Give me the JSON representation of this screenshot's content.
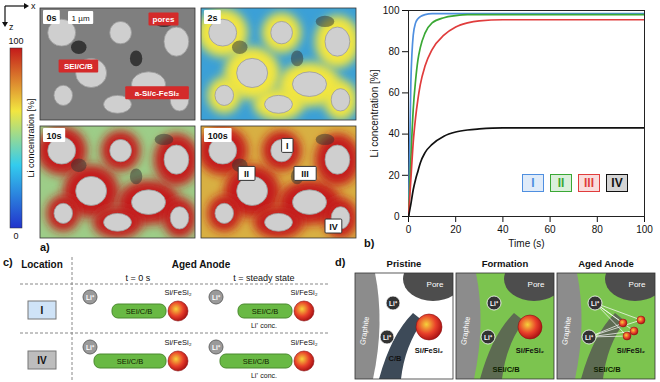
{
  "chart_data": {
    "type": "line",
    "panel_label": "b)",
    "xlabel": "Time (s)",
    "ylabel": "Li concentration [%]",
    "x": [
      0,
      1,
      2,
      3,
      4,
      5,
      7,
      10,
      15,
      20,
      25,
      30,
      40,
      50,
      60,
      70,
      80,
      90,
      100
    ],
    "series": [
      {
        "name": "I",
        "color": "#4f8fe0",
        "values": [
          0,
          65,
          88,
          94,
          96,
          97,
          98,
          98.5,
          98.5,
          98.5,
          98.5,
          98.5,
          98.5,
          98.5,
          98.5,
          98.5,
          98.5,
          98.5,
          98.5
        ]
      },
      {
        "name": "II",
        "color": "#3aa835",
        "values": [
          0,
          28,
          52,
          66,
          76,
          82,
          89,
          94,
          96.5,
          97.5,
          98,
          98,
          98,
          98,
          98,
          98,
          98,
          98,
          98
        ]
      },
      {
        "name": "III",
        "color": "#e03c3c",
        "values": [
          0,
          18,
          36,
          48,
          57,
          64,
          73,
          81,
          88,
          92,
          94,
          95,
          95.5,
          95.5,
          95.5,
          95.5,
          95.5,
          95.5,
          95.5
        ]
      },
      {
        "name": "IV",
        "color": "#111111",
        "values": [
          0,
          6,
          13,
          18,
          22,
          26,
          31,
          35,
          39,
          41,
          42,
          42.5,
          43,
          43,
          43,
          43,
          43,
          43,
          43
        ]
      }
    ],
    "xlim": [
      0,
      100
    ],
    "ylim": [
      0,
      100
    ],
    "xticks": [
      0,
      20,
      40,
      60,
      80,
      100
    ],
    "yticks": [
      0,
      20,
      40,
      60,
      80,
      100
    ],
    "grid": false,
    "legend": "bottom-right"
  },
  "panel_a": {
    "panel_label": "a)",
    "axes": {
      "x": "x",
      "z": "z"
    },
    "scale_bar": "1 µm",
    "frames": [
      "0s",
      "2s",
      "10s",
      "100s"
    ],
    "annotations": [
      "pores",
      "SEI/C/B",
      "a-Si/c-FeSi₂"
    ],
    "regions": [
      "I",
      "II",
      "III",
      "IV"
    ],
    "colorbar": {
      "label": "Li concentration [%]",
      "range": [
        0,
        100
      ],
      "ticks": [
        0,
        100
      ]
    }
  },
  "panel_c": {
    "panel_label": "c)",
    "headers": {
      "location": "Location",
      "condition": "Aged Anode"
    },
    "columns": [
      "t = 0 s",
      "t = steady state"
    ],
    "rows": [
      {
        "location": "I",
        "cells": [
          {
            "binder": "SEI/C/B",
            "particle": "Si/FeSi₂",
            "ion": "Li⁺"
          },
          {
            "binder": "SEI/C/B",
            "particle": "Si/FeSi₂",
            "ion": "Li⁺",
            "conc": "Li⁺ conc."
          }
        ]
      },
      {
        "location": "IV",
        "cells": [
          {
            "binder": "SEI/C/B",
            "particle": "Si/FeSi₂",
            "ion": "Li⁺"
          },
          {
            "binder": "SEI/C/B",
            "particle": "Si/FeSi₂",
            "ion": "Li⁺",
            "conc": "Li⁺ conc."
          }
        ]
      }
    ]
  },
  "panel_d": {
    "panel_label": "d)",
    "panels": [
      {
        "title": "Pristine",
        "pore": "Pore",
        "graphite": "Graphite",
        "binder": "C/B",
        "particle": "Si/FeSi₂",
        "ion": "Li⁺"
      },
      {
        "title": "Formation",
        "pore": "Pore",
        "graphite": "Graphite",
        "binder": "SEI/C/B",
        "particle": "Si/FeSi₂",
        "ion": "Li⁺"
      },
      {
        "title": "Aged Anode",
        "pore": "Pore",
        "graphite": "Graphite",
        "binder": "SEI/C/B",
        "particle": "Si/FeSi₂",
        "ion": "Li⁺"
      }
    ]
  }
}
